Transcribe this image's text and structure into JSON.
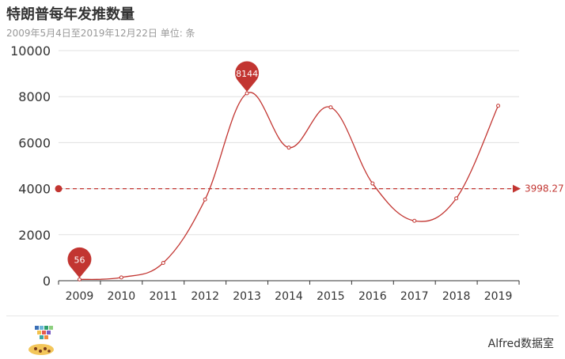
{
  "chart_data": {
    "type": "line",
    "title": "特朗普每年发推数量",
    "subtitle": "2009年5月4日至2019年12月22日 单位: 条",
    "categories": [
      "2009",
      "2010",
      "2011",
      "2012",
      "2013",
      "2014",
      "2015",
      "2016",
      "2017",
      "2018",
      "2019"
    ],
    "series": [
      {
        "values": [
          56,
          143,
          774,
          3531,
          8144,
          5784,
          7536,
          4225,
          2603,
          3580,
          7602
        ]
      }
    ],
    "ylim": [
      0,
      10000
    ],
    "yticks": [
      0,
      2000,
      4000,
      6000,
      8000,
      10000
    ],
    "grid": true,
    "smooth": true,
    "mark_points": [
      {
        "label": "56",
        "category": "2009",
        "value": 56
      },
      {
        "label": "8144",
        "category": "2013",
        "value": 8144
      }
    ],
    "mark_line": {
      "label": "3998.27",
      "value": 3998.27
    },
    "color": "#c23531"
  },
  "footer": {
    "brand": "Alfred数据室"
  }
}
